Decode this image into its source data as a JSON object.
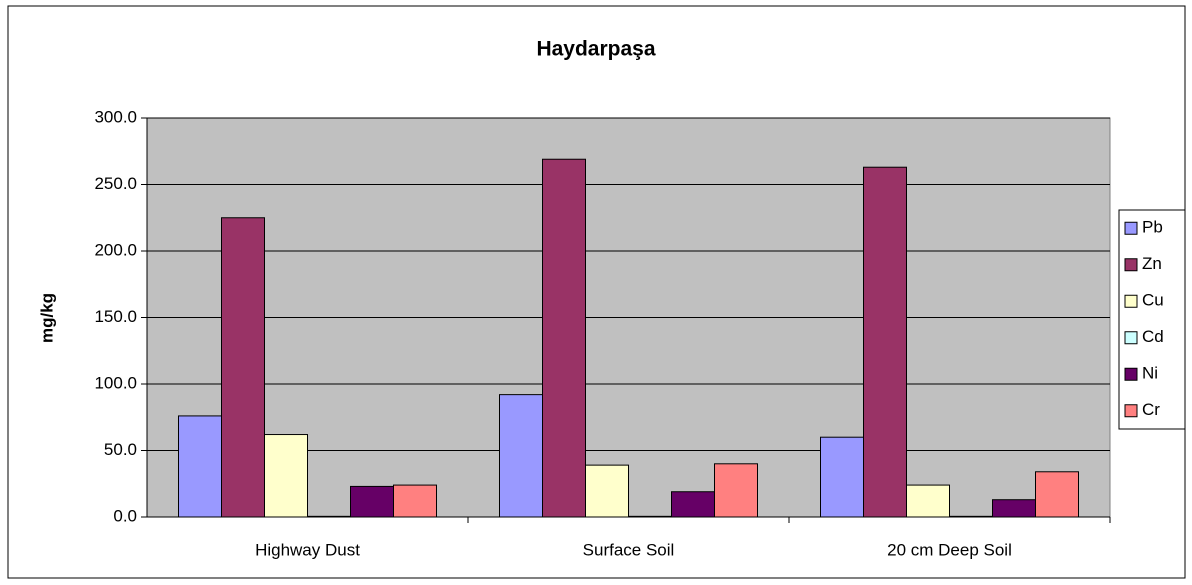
{
  "chart_data": {
    "type": "bar",
    "title": "Haydarpaşa",
    "ylabel": "mg/kg",
    "categories": [
      "Highway Dust",
      "Surface Soil",
      "20 cm Deep Soil"
    ],
    "series": [
      {
        "name": "Pb",
        "color": "#9999ff",
        "values": [
          76,
          92,
          60
        ]
      },
      {
        "name": "Zn",
        "color": "#993366",
        "values": [
          225,
          269,
          263
        ]
      },
      {
        "name": "Cu",
        "color": "#ffffcc",
        "values": [
          62,
          39,
          24
        ]
      },
      {
        "name": "Cd",
        "color": "#ccffff",
        "values": [
          0.5,
          0.5,
          0.5
        ]
      },
      {
        "name": "Ni",
        "color": "#660066",
        "values": [
          23,
          19,
          13
        ]
      },
      {
        "name": "Cr",
        "color": "#ff8080",
        "values": [
          24,
          40,
          34
        ]
      }
    ],
    "ylim": [
      0,
      300
    ],
    "yticks": [
      {
        "value": 0,
        "label": "0.0"
      },
      {
        "value": 50,
        "label": "50.0"
      },
      {
        "value": 100,
        "label": "100.0"
      },
      {
        "value": 150,
        "label": "150.0"
      },
      {
        "value": 200,
        "label": "200.0"
      },
      {
        "value": 250,
        "label": "250.0"
      },
      {
        "value": 300,
        "label": "300.0"
      }
    ],
    "grid": true,
    "legend": "right",
    "plot_background": "#c0c0c0"
  }
}
